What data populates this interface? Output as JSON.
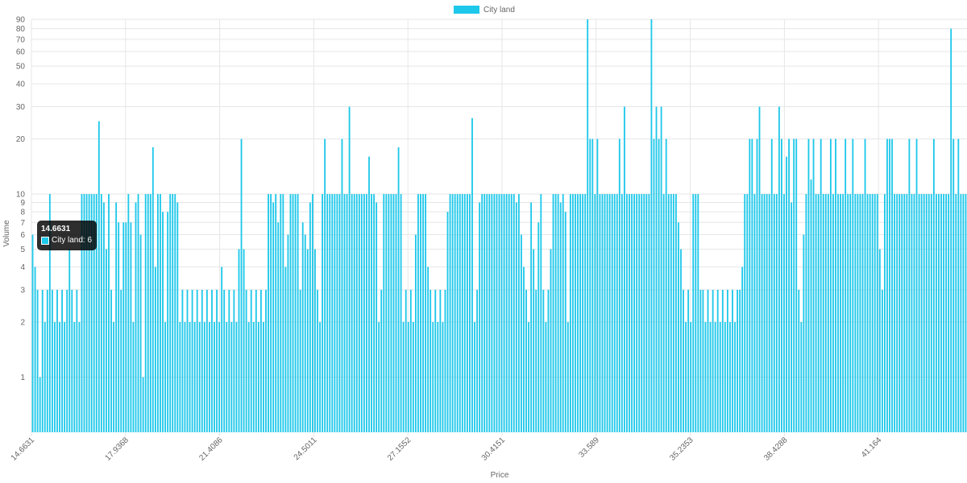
{
  "chart_data": {
    "type": "bar",
    "legend": {
      "label": "City land",
      "position": "top"
    },
    "xlabel": "Price",
    "ylabel": "Volume",
    "log_scale_y": true,
    "ylim": [
      0.5,
      90
    ],
    "grid": true,
    "color": "#1ec8ea",
    "y_tick_labels": [
      "1",
      "2",
      "3",
      "4",
      "5",
      "6",
      "7",
      "8",
      "9",
      "10",
      "20",
      "30",
      "40",
      "50",
      "60",
      "70",
      "80",
      "90"
    ],
    "x_tick_labels": [
      "14.6631",
      "17.9368",
      "21.4086",
      "24.5011",
      "27.1552",
      "30.4151",
      "33.589",
      "35.2353",
      "38.4288",
      "41.164"
    ],
    "series": [
      {
        "name": "City land",
        "values": [
          6,
          4,
          3,
          1,
          3,
          2,
          3,
          10,
          3,
          2,
          3,
          2,
          3,
          2,
          3,
          5,
          3,
          2,
          3,
          2,
          10,
          10,
          10,
          10,
          10,
          10,
          10,
          25,
          10,
          9,
          5,
          10,
          3,
          2,
          9,
          7,
          3,
          7,
          7,
          10,
          7,
          2,
          9,
          10,
          6,
          1,
          10,
          10,
          10,
          18,
          4,
          10,
          10,
          8,
          2,
          8,
          10,
          10,
          10,
          9,
          2,
          3,
          2,
          3,
          2,
          3,
          2,
          3,
          2,
          3,
          2,
          3,
          2,
          3,
          2,
          3,
          2,
          4,
          3,
          2,
          3,
          2,
          3,
          2,
          5,
          20,
          5,
          3,
          2,
          3,
          2,
          3,
          2,
          3,
          2,
          3,
          10,
          10,
          9,
          10,
          7,
          10,
          10,
          4,
          6,
          10,
          10,
          10,
          10,
          3,
          7,
          6,
          5,
          9,
          10,
          5,
          3,
          2,
          10,
          20,
          10,
          10,
          10,
          10,
          10,
          10,
          20,
          10,
          10,
          30,
          10,
          10,
          10,
          10,
          10,
          10,
          10,
          16,
          10,
          10,
          9,
          2,
          3,
          10,
          10,
          10,
          10,
          10,
          10,
          18,
          10,
          2,
          3,
          2,
          3,
          2,
          6,
          10,
          10,
          10,
          10,
          4,
          3,
          2,
          3,
          2,
          3,
          2,
          3,
          8,
          10,
          10,
          10,
          10,
          10,
          10,
          10,
          10,
          10,
          26,
          2,
          3,
          9,
          10,
          10,
          10,
          10,
          10,
          10,
          10,
          10,
          10,
          10,
          10,
          10,
          10,
          10,
          9,
          10,
          6,
          4,
          3,
          2,
          9,
          5,
          3,
          7,
          10,
          3,
          2,
          3,
          5,
          10,
          10,
          10,
          9,
          10,
          8,
          2,
          10,
          10,
          10,
          10,
          10,
          10,
          10,
          90,
          20,
          20,
          10,
          20,
          10,
          10,
          10,
          10,
          10,
          10,
          10,
          10,
          20,
          10,
          30,
          10,
          10,
          10,
          10,
          10,
          10,
          10,
          10,
          10,
          10,
          90,
          20,
          30,
          20,
          30,
          10,
          20,
          10,
          10,
          10,
          10,
          7,
          5,
          3,
          2,
          3,
          2,
          10,
          10,
          10,
          3,
          3,
          2,
          3,
          2,
          3,
          2,
          3,
          2,
          3,
          2,
          3,
          2,
          3,
          2,
          3,
          3,
          4,
          10,
          10,
          20,
          20,
          10,
          20,
          30,
          10,
          10,
          10,
          10,
          20,
          10,
          10,
          30,
          20,
          10,
          16,
          20,
          9,
          20,
          20,
          3,
          2,
          6,
          10,
          20,
          12,
          20,
          10,
          10,
          20,
          10,
          10,
          10,
          20,
          10,
          20,
          10,
          10,
          10,
          20,
          10,
          10,
          20,
          10,
          10,
          10,
          10,
          20,
          10,
          10,
          10,
          10,
          10,
          5,
          3,
          10,
          20,
          20,
          20,
          10,
          10,
          10,
          10,
          10,
          10,
          20,
          10,
          10,
          20,
          10,
          10,
          10,
          10,
          10,
          10,
          20,
          10,
          10,
          10,
          10,
          10,
          10,
          80,
          20,
          10,
          20,
          10,
          10,
          10
        ]
      }
    ]
  },
  "tooltip": {
    "title": "14.6631",
    "label": "City land: 6"
  }
}
